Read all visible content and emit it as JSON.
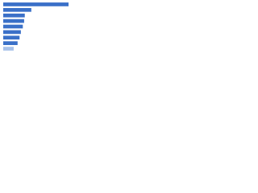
{
  "chart_data": {
    "type": "hbar",
    "categories": [
      null,
      null,
      null,
      null,
      null,
      null,
      null,
      null,
      null
    ],
    "values": [
      100,
      43,
      33,
      32,
      30,
      27,
      25,
      22,
      16
    ],
    "colors": [
      "#3a70c8",
      "#3a70c8",
      "#3a70c8",
      "#3a70c8",
      "#3a70c8",
      "#3a70c8",
      "#3a70c8",
      "#3a70c8",
      "#a8c2ea"
    ],
    "xlim": [
      0,
      100
    ]
  }
}
